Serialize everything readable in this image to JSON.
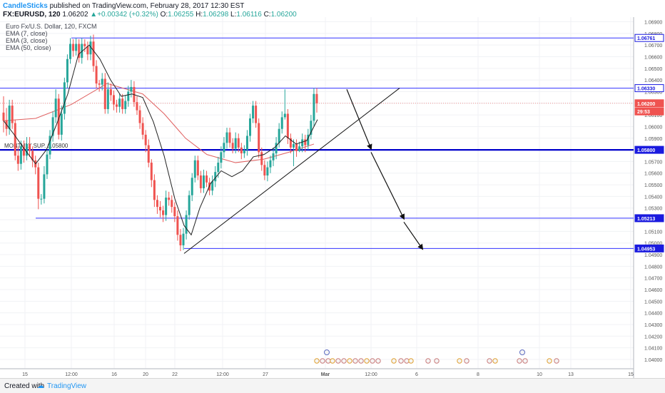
{
  "header": {
    "author": "CandleSticks",
    "published_text": "published on TradingView.com, February 28, 2017 12:30 EST",
    "symbol": "FX:EURUSD, 120",
    "last_price": "1.06202",
    "change": "+0.00342 (+0.32%)",
    "open_label": "O:",
    "open": "1.06255",
    "high_label": "H:",
    "high": "1.06298",
    "low_label": "L:",
    "low": "1.06116",
    "close_label": "C:",
    "close": "1.06200"
  },
  "legend": {
    "title": "Euro Fx/U.S. Dollar, 120, FXCM",
    "ema1": "EMA (7, close)",
    "ema2": "EMA (3, close)",
    "ema3": "EMA (50, close)"
  },
  "footer": {
    "created_with": "Created with",
    "brand": "TradingView"
  },
  "colors": {
    "up": "#26a69a",
    "down": "#ef5350",
    "hline": "#3333ff",
    "support": "#0000cc",
    "ema50": "#e06060",
    "ema7": "#222222",
    "price_tag": "#ef5350",
    "axis_tag": "#1a1adf"
  },
  "chart_data": {
    "type": "candlestick",
    "y_range": [
      1.0392,
      1.0694
    ],
    "y_ticks": [
      "1.06900",
      "1.06800",
      "1.06700",
      "1.06600",
      "1.06500",
      "1.06400",
      "1.06300",
      "1.06200",
      "1.06100",
      "1.06000",
      "1.05900",
      "1.05800",
      "1.05700",
      "1.05600",
      "1.05500",
      "1.05400",
      "1.05300",
      "1.05200",
      "1.05100",
      "1.05000",
      "1.04900",
      "1.04800",
      "1.04700",
      "1.04600",
      "1.04500",
      "1.04400",
      "1.04300",
      "1.04200",
      "1.04100",
      "1.04000"
    ],
    "x_labels": [
      "15",
      "12:00",
      "16",
      "20",
      "22",
      "12:00",
      "27",
      "Mar",
      "12:00",
      "6",
      "8",
      "10",
      "13",
      "15"
    ],
    "axis_tags": [
      {
        "text": "1.06761",
        "price": 1.06761,
        "style": "box"
      },
      {
        "text": "1.06330",
        "price": 1.0633,
        "style": "box"
      },
      {
        "text": "1.06200",
        "price": 1.062,
        "style": "price"
      },
      {
        "text": "29:53",
        "price": 1.0613,
        "style": "price"
      },
      {
        "text": "1.05800",
        "price": 1.058,
        "style": "fill"
      },
      {
        "text": "1.05213",
        "price": 1.05213,
        "style": "fill"
      },
      {
        "text": "1.04953",
        "price": 1.04953,
        "style": "fill"
      }
    ],
    "monthly_label": "MONTHLY SUP. 1.05800",
    "horizontal_lines": [
      {
        "price": 1.06761,
        "from_date": "Feb 16",
        "weight": "thin"
      },
      {
        "price": 1.0633,
        "from_date": "start",
        "weight": "thin"
      },
      {
        "price": 1.058,
        "from_date": "start",
        "weight": "thick"
      },
      {
        "price": 1.05213,
        "from_date": "Feb 15",
        "weight": "thin"
      },
      {
        "price": 1.04953,
        "from_date": "Feb 22",
        "weight": "thin"
      }
    ],
    "trendline": {
      "from": [
        "Feb 22",
        1.0491
      ],
      "to": [
        "Mar 1",
        1.0633
      ]
    },
    "arrows": [
      {
        "from": [
          "Feb 28",
          1.0632
        ],
        "to": [
          "Mar 1",
          1.0581
        ]
      },
      {
        "from": [
          "Mar 1",
          1.0578
        ],
        "to": [
          "Mar 2",
          1.0521
        ]
      },
      {
        "from": [
          "Mar 2",
          1.0518
        ],
        "to": [
          "Mar 3",
          1.0495
        ]
      }
    ],
    "candles": [
      [
        1.0612,
        1.0605,
        1.0626,
        1.0595
      ],
      [
        1.0605,
        1.0598,
        1.0616,
        1.0592
      ],
      [
        1.0598,
        1.0618,
        1.0623,
        1.0593
      ],
      [
        1.0618,
        1.0603,
        1.0623,
        1.0598
      ],
      [
        1.0603,
        1.0575,
        1.0606,
        1.0571
      ],
      [
        1.0575,
        1.0568,
        1.0583,
        1.0562
      ],
      [
        1.0568,
        1.0583,
        1.0588,
        1.0563
      ],
      [
        1.0583,
        1.0575,
        1.0588,
        1.0569
      ],
      [
        1.0575,
        1.0585,
        1.0591,
        1.0571
      ],
      [
        1.0585,
        1.0579,
        1.0591,
        1.0574
      ],
      [
        1.0579,
        1.0571,
        1.0583,
        1.0565
      ],
      [
        1.0571,
        1.0565,
        1.0575,
        1.0559
      ],
      [
        1.0565,
        1.0538,
        1.0569,
        1.0529
      ],
      [
        1.0538,
        1.0538,
        1.0542,
        1.0533
      ],
      [
        1.0538,
        1.0559,
        1.0566,
        1.0534
      ],
      [
        1.0559,
        1.0576,
        1.058,
        1.0555
      ],
      [
        1.0576,
        1.0592,
        1.0597,
        1.0572
      ],
      [
        1.0592,
        1.0608,
        1.0613,
        1.0587
      ],
      [
        1.0608,
        1.0624,
        1.0632,
        1.0603
      ],
      [
        1.0624,
        1.0593,
        1.0628,
        1.0589
      ],
      [
        1.0593,
        1.0611,
        1.0618,
        1.0588
      ],
      [
        1.0611,
        1.0638,
        1.0642,
        1.0606
      ],
      [
        1.0638,
        1.0658,
        1.0662,
        1.0633
      ],
      [
        1.0658,
        1.0671,
        1.0676,
        1.0654
      ],
      [
        1.0671,
        1.0665,
        1.0675,
        1.066
      ],
      [
        1.0665,
        1.0671,
        1.0676,
        1.0661
      ],
      [
        1.0671,
        1.0659,
        1.0675,
        1.0655
      ],
      [
        1.0659,
        1.0671,
        1.0676,
        1.0654
      ],
      [
        1.0671,
        1.0669,
        1.0675,
        1.0664
      ],
      [
        1.0669,
        1.0662,
        1.0673,
        1.0657
      ],
      [
        1.0662,
        1.0673,
        1.0678,
        1.0657
      ],
      [
        1.0673,
        1.0652,
        1.0679,
        1.0647
      ],
      [
        1.0652,
        1.0637,
        1.0657,
        1.0633
      ],
      [
        1.0637,
        1.0636,
        1.064,
        1.063
      ],
      [
        1.0636,
        1.0641,
        1.0646,
        1.0631
      ],
      [
        1.0641,
        1.0615,
        1.0646,
        1.0611
      ],
      [
        1.0615,
        1.0632,
        1.0638,
        1.0611
      ],
      [
        1.0632,
        1.0627,
        1.0637,
        1.0622
      ],
      [
        1.0627,
        1.0619,
        1.0631,
        1.0614
      ],
      [
        1.0619,
        1.0617,
        1.0623,
        1.0612
      ],
      [
        1.0617,
        1.0624,
        1.0628,
        1.0612
      ],
      [
        1.0624,
        1.0615,
        1.0628,
        1.0611
      ],
      [
        1.0615,
        1.0622,
        1.0627,
        1.0611
      ],
      [
        1.0622,
        1.063,
        1.0635,
        1.0617
      ],
      [
        1.063,
        1.0634,
        1.064,
        1.0625
      ],
      [
        1.0634,
        1.0621,
        1.0639,
        1.0617
      ],
      [
        1.0621,
        1.0614,
        1.0626,
        1.061
      ],
      [
        1.0614,
        1.0603,
        1.0618,
        1.0598
      ],
      [
        1.0603,
        1.0593,
        1.0608,
        1.0589
      ],
      [
        1.0593,
        1.0584,
        1.0597,
        1.0578
      ],
      [
        1.0584,
        1.0569,
        1.0589,
        1.0565
      ],
      [
        1.0569,
        1.0554,
        1.0572,
        1.0548
      ],
      [
        1.0554,
        1.0537,
        1.0559,
        1.0531
      ],
      [
        1.0537,
        1.0531,
        1.0541,
        1.0525
      ],
      [
        1.0531,
        1.0528,
        1.0536,
        1.0522
      ],
      [
        1.0528,
        1.0524,
        1.0532,
        1.0518
      ],
      [
        1.0524,
        1.0539,
        1.0545,
        1.0519
      ],
      [
        1.0539,
        1.0537,
        1.0544,
        1.0532
      ],
      [
        1.0537,
        1.0531,
        1.0541,
        1.0526
      ],
      [
        1.0531,
        1.0523,
        1.0535,
        1.0518
      ],
      [
        1.0523,
        1.0507,
        1.0528,
        1.0502
      ],
      [
        1.0507,
        1.0498,
        1.0512,
        1.0493
      ],
      [
        1.0498,
        1.0508,
        1.0513,
        1.0494
      ],
      [
        1.0508,
        1.0524,
        1.0528,
        1.0503
      ],
      [
        1.0524,
        1.0541,
        1.0545,
        1.052
      ],
      [
        1.0541,
        1.0556,
        1.056,
        1.0536
      ],
      [
        1.0556,
        1.0571,
        1.0575,
        1.0552
      ],
      [
        1.0571,
        1.0558,
        1.0575,
        1.0554
      ],
      [
        1.0558,
        1.0547,
        1.0562,
        1.0543
      ],
      [
        1.0547,
        1.0558,
        1.0563,
        1.0543
      ],
      [
        1.0558,
        1.0552,
        1.0562,
        1.0548
      ],
      [
        1.0552,
        1.0545,
        1.0556,
        1.0541
      ],
      [
        1.0545,
        1.0553,
        1.0558,
        1.0541
      ],
      [
        1.0553,
        1.0561,
        1.0566,
        1.0548
      ],
      [
        1.0561,
        1.0569,
        1.0574,
        1.0556
      ],
      [
        1.0569,
        1.0578,
        1.0583,
        1.0564
      ],
      [
        1.0578,
        1.0586,
        1.0591,
        1.0573
      ],
      [
        1.0586,
        1.0595,
        1.0599,
        1.0581
      ],
      [
        1.0595,
        1.0586,
        1.0599,
        1.0582
      ],
      [
        1.0586,
        1.0581,
        1.059,
        1.0577
      ],
      [
        1.0581,
        1.059,
        1.0595,
        1.0577
      ],
      [
        1.059,
        1.0582,
        1.0594,
        1.0578
      ],
      [
        1.0582,
        1.0577,
        1.0586,
        1.0572
      ],
      [
        1.0577,
        1.058,
        1.0584,
        1.0573
      ],
      [
        1.058,
        1.0592,
        1.0597,
        1.0575
      ],
      [
        1.0592,
        1.0607,
        1.0611,
        1.0587
      ],
      [
        1.0607,
        1.0618,
        1.0622,
        1.0603
      ],
      [
        1.0618,
        1.0603,
        1.0622,
        1.0599
      ],
      [
        1.0603,
        1.0578,
        1.0607,
        1.0573
      ],
      [
        1.0578,
        1.0567,
        1.0582,
        1.0562
      ],
      [
        1.0567,
        1.0558,
        1.0571,
        1.0554
      ],
      [
        1.0558,
        1.0565,
        1.057,
        1.0553
      ],
      [
        1.0565,
        1.0571,
        1.0575,
        1.056
      ],
      [
        1.0571,
        1.0577,
        1.0582,
        1.0566
      ],
      [
        1.0577,
        1.0586,
        1.0591,
        1.0572
      ],
      [
        1.0586,
        1.0598,
        1.0603,
        1.0582
      ],
      [
        1.0598,
        1.0608,
        1.0613,
        1.0594
      ],
      [
        1.0608,
        1.0611,
        1.0632,
        1.0606
      ],
      [
        1.0611,
        1.059,
        1.0615,
        1.0585
      ],
      [
        1.059,
        1.0582,
        1.0594,
        1.0577
      ],
      [
        1.0582,
        1.0585,
        1.0589,
        1.0566
      ],
      [
        1.0585,
        1.0579,
        1.0589,
        1.0574
      ],
      [
        1.0579,
        1.0583,
        1.0587,
        1.0578
      ],
      [
        1.0583,
        1.0589,
        1.0594,
        1.0578
      ],
      [
        1.0589,
        1.0584,
        1.0593,
        1.0578
      ],
      [
        1.0584,
        1.0593,
        1.0598,
        1.058
      ],
      [
        1.0593,
        1.0605,
        1.061,
        1.0589
      ],
      [
        1.0605,
        1.0628,
        1.0633,
        1.06
      ],
      [
        1.0628,
        1.062,
        1.0633,
        1.0612
      ]
    ],
    "ema50": [
      [
        5,
        1.0605
      ],
      [
        50,
        1.0607
      ],
      [
        100,
        1.0619
      ],
      [
        150,
        1.0637
      ],
      [
        200,
        1.0628
      ],
      [
        230,
        1.0611
      ],
      [
        260,
        1.059
      ],
      [
        290,
        1.0576
      ],
      [
        330,
        1.0569
      ],
      [
        370,
        1.0572
      ],
      [
        405,
        1.0578
      ],
      [
        440,
        1.0585
      ]
    ],
    "ema7": [
      [
        5,
        1.0605
      ],
      [
        20,
        1.0593
      ],
      [
        35,
        1.058
      ],
      [
        50,
        1.0568
      ],
      [
        65,
        1.058
      ],
      [
        80,
        1.0603
      ],
      [
        95,
        1.0628
      ],
      [
        110,
        1.0662
      ],
      [
        125,
        1.067
      ],
      [
        140,
        1.0658
      ],
      [
        155,
        1.064
      ],
      [
        170,
        1.0626
      ],
      [
        185,
        1.0628
      ],
      [
        200,
        1.0625
      ],
      [
        215,
        1.0604
      ],
      [
        230,
        1.0575
      ],
      [
        245,
        1.0538
      ],
      [
        258,
        1.0515
      ],
      [
        268,
        1.0507
      ],
      [
        280,
        1.053
      ],
      [
        295,
        1.0551
      ],
      [
        310,
        1.0562
      ],
      [
        325,
        1.0557
      ],
      [
        340,
        1.0562
      ],
      [
        355,
        1.0574
      ],
      [
        370,
        1.0576
      ],
      [
        385,
        1.0582
      ],
      [
        400,
        1.0592
      ],
      [
        415,
        1.0585
      ],
      [
        430,
        1.0588
      ],
      [
        445,
        1.0606
      ]
    ],
    "event_icons": [
      "E",
      "E",
      "E",
      "E",
      "E",
      "E",
      "E",
      "E",
      "E",
      "E",
      "E",
      "E",
      "E",
      "E",
      "E",
      "E",
      "E",
      "E",
      "E",
      "E",
      "E",
      "E"
    ]
  }
}
